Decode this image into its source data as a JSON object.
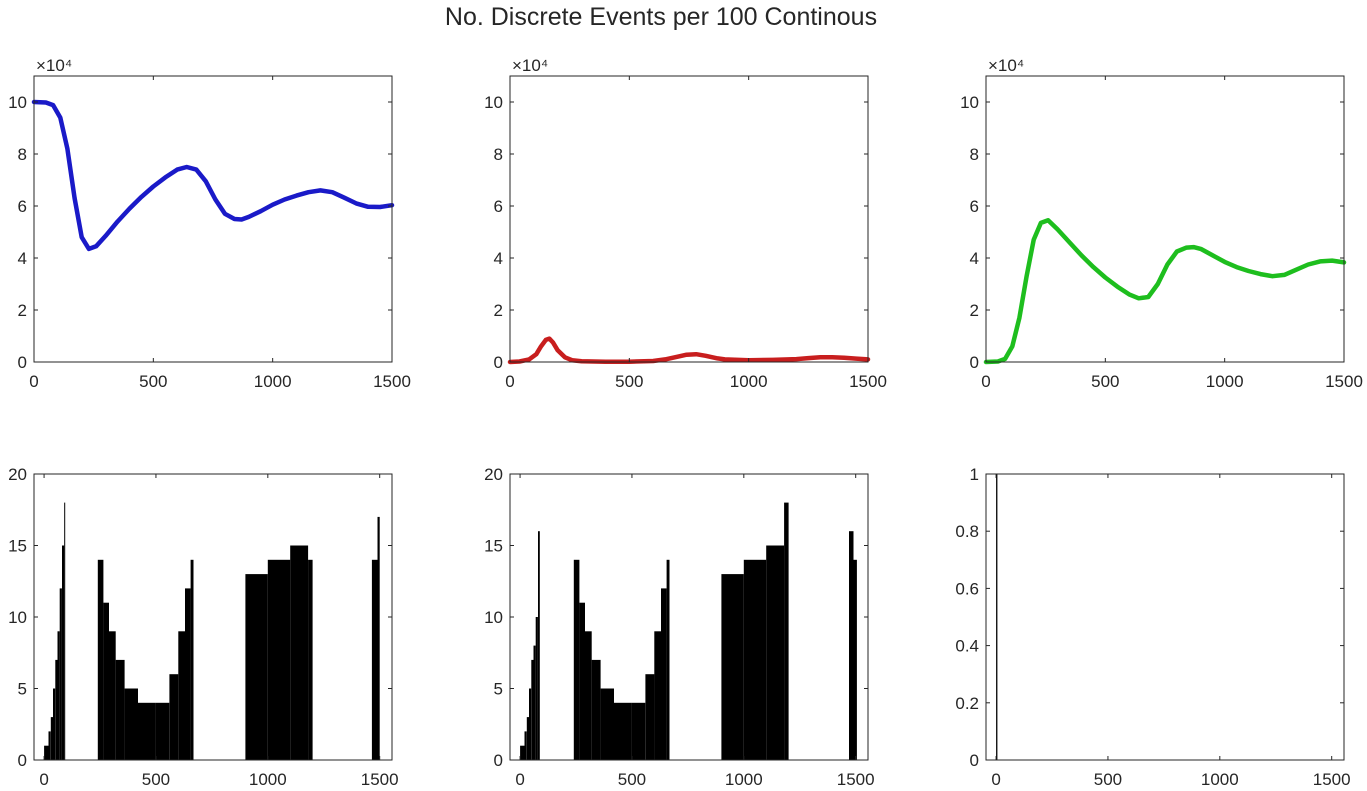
{
  "figure": {
    "title": "No. Discrete Events per 100 Continous"
  },
  "colors": {
    "series_1": "#1a1ac8",
    "series_2": "#c81e1e",
    "series_3": "#1ebe1e",
    "bars": "#000000",
    "axis": "#262626"
  },
  "chart_data": [
    {
      "type": "line",
      "panel": "top-left",
      "xlim": [
        0,
        1500
      ],
      "ylim": [
        0,
        110000
      ],
      "xticks": [
        0,
        500,
        1000,
        1500
      ],
      "yticks": [
        0,
        20000,
        40000,
        60000,
        80000,
        100000
      ],
      "ytick_labels": [
        "0",
        "2",
        "4",
        "6",
        "8",
        "10"
      ],
      "exponent_label": "×10⁴",
      "grid": false,
      "series": [
        {
          "color": "#1a1ac8",
          "x": [
            0,
            50,
            80,
            110,
            140,
            170,
            200,
            230,
            260,
            300,
            350,
            400,
            450,
            500,
            550,
            600,
            640,
            680,
            720,
            760,
            800,
            840,
            870,
            900,
            950,
            1000,
            1050,
            1100,
            1150,
            1200,
            1250,
            1300,
            1350,
            1400,
            1450,
            1500
          ],
          "y": [
            100000,
            99800,
            98800,
            94000,
            82000,
            63000,
            48000,
            43500,
            44500,
            48500,
            54000,
            59000,
            63500,
            67500,
            71000,
            74000,
            75000,
            74000,
            69500,
            62500,
            57000,
            55000,
            54800,
            55800,
            58000,
            60500,
            62500,
            64000,
            65300,
            66000,
            65300,
            63200,
            61000,
            59700,
            59600,
            60300
          ]
        }
      ]
    },
    {
      "type": "line",
      "panel": "top-center",
      "xlim": [
        0,
        1500
      ],
      "ylim": [
        0,
        110000
      ],
      "xticks": [
        0,
        500,
        1000,
        1500
      ],
      "yticks": [
        0,
        20000,
        40000,
        60000,
        80000,
        100000
      ],
      "ytick_labels": [
        "0",
        "2",
        "4",
        "6",
        "8",
        "10"
      ],
      "exponent_label": "×10⁴",
      "grid": false,
      "series": [
        {
          "color": "#c81e1e",
          "x": [
            0,
            40,
            80,
            110,
            130,
            150,
            165,
            180,
            200,
            230,
            260,
            300,
            400,
            500,
            600,
            650,
            700,
            740,
            780,
            820,
            870,
            900,
            1000,
            1100,
            1200,
            1250,
            1300,
            1350,
            1400,
            1450,
            1500
          ],
          "y": [
            0,
            200,
            1000,
            3000,
            6000,
            8500,
            9000,
            7500,
            4500,
            1800,
            700,
            300,
            100,
            100,
            400,
            1000,
            2000,
            2800,
            3000,
            2400,
            1400,
            1000,
            700,
            800,
            1100,
            1500,
            1800,
            1800,
            1600,
            1300,
            1000
          ]
        }
      ]
    },
    {
      "type": "line",
      "panel": "top-right",
      "xlim": [
        0,
        1500
      ],
      "ylim": [
        0,
        110000
      ],
      "xticks": [
        0,
        500,
        1000,
        1500
      ],
      "yticks": [
        0,
        20000,
        40000,
        60000,
        80000,
        100000
      ],
      "ytick_labels": [
        "0",
        "2",
        "4",
        "6",
        "8",
        "10"
      ],
      "exponent_label": "×10⁴",
      "grid": false,
      "series": [
        {
          "color": "#1ebe1e",
          "x": [
            0,
            50,
            80,
            110,
            140,
            170,
            200,
            230,
            260,
            300,
            350,
            400,
            450,
            500,
            550,
            600,
            640,
            680,
            720,
            760,
            800,
            840,
            870,
            900,
            950,
            1000,
            1050,
            1100,
            1150,
            1200,
            1250,
            1300,
            1350,
            1400,
            1450,
            1500
          ],
          "y": [
            0,
            200,
            1200,
            6000,
            17000,
            33000,
            47000,
            53500,
            54500,
            51000,
            46000,
            41000,
            36500,
            32500,
            29000,
            26000,
            24500,
            25000,
            30000,
            37500,
            42500,
            44000,
            44200,
            43500,
            41000,
            38500,
            36500,
            35000,
            33800,
            33000,
            33500,
            35500,
            37500,
            38700,
            39000,
            38300
          ]
        }
      ]
    },
    {
      "type": "bar",
      "panel": "bottom-left",
      "xlim": [
        -45,
        1555
      ],
      "ylim": [
        0,
        20
      ],
      "xticks": [
        0,
        500,
        1000,
        1500
      ],
      "yticks": [
        0,
        5,
        10,
        15,
        20
      ],
      "grid": false,
      "color": "#000000",
      "segments": [
        {
          "x_range": [
            0,
            20
          ],
          "y": 1
        },
        {
          "x_range": [
            20,
            30
          ],
          "y": 2
        },
        {
          "x_range": [
            30,
            40
          ],
          "y": 3
        },
        {
          "x_range": [
            40,
            50
          ],
          "y": 5
        },
        {
          "x_range": [
            50,
            60
          ],
          "y": 7
        },
        {
          "x_range": [
            60,
            70
          ],
          "y": 9
        },
        {
          "x_range": [
            70,
            80
          ],
          "y": 12
        },
        {
          "x_range": [
            80,
            90
          ],
          "y": 15
        },
        {
          "x_range": [
            90,
            94
          ],
          "y": 18
        },
        {
          "x_range": [
            240,
            265
          ],
          "y": 14
        },
        {
          "x_range": [
            265,
            290
          ],
          "y": 11
        },
        {
          "x_range": [
            290,
            320
          ],
          "y": 9
        },
        {
          "x_range": [
            320,
            360
          ],
          "y": 7
        },
        {
          "x_range": [
            360,
            420
          ],
          "y": 5
        },
        {
          "x_range": [
            420,
            500
          ],
          "y": 4
        },
        {
          "x_range": [
            500,
            560
          ],
          "y": 4
        },
        {
          "x_range": [
            560,
            600
          ],
          "y": 6
        },
        {
          "x_range": [
            600,
            630
          ],
          "y": 9
        },
        {
          "x_range": [
            630,
            655
          ],
          "y": 12
        },
        {
          "x_range": [
            655,
            668
          ],
          "y": 14
        },
        {
          "x_range": [
            900,
            1000
          ],
          "y": 13
        },
        {
          "x_range": [
            1000,
            1100
          ],
          "y": 14
        },
        {
          "x_range": [
            1100,
            1180
          ],
          "y": 15
        },
        {
          "x_range": [
            1180,
            1200
          ],
          "y": 14
        },
        {
          "x_range": [
            1465,
            1490
          ],
          "y": 14
        },
        {
          "x_range": [
            1490,
            1500
          ],
          "y": 17
        }
      ]
    },
    {
      "type": "bar",
      "panel": "bottom-center",
      "xlim": [
        -45,
        1555
      ],
      "ylim": [
        0,
        20
      ],
      "xticks": [
        0,
        500,
        1000,
        1500
      ],
      "yticks": [
        0,
        5,
        10,
        15,
        20
      ],
      "grid": false,
      "color": "#000000",
      "segments": [
        {
          "x_range": [
            0,
            20
          ],
          "y": 1
        },
        {
          "x_range": [
            20,
            30
          ],
          "y": 2
        },
        {
          "x_range": [
            30,
            40
          ],
          "y": 3
        },
        {
          "x_range": [
            40,
            50
          ],
          "y": 5
        },
        {
          "x_range": [
            50,
            60
          ],
          "y": 7
        },
        {
          "x_range": [
            60,
            70
          ],
          "y": 8
        },
        {
          "x_range": [
            70,
            80
          ],
          "y": 10
        },
        {
          "x_range": [
            80,
            88
          ],
          "y": 16
        },
        {
          "x_range": [
            240,
            265
          ],
          "y": 14
        },
        {
          "x_range": [
            265,
            290
          ],
          "y": 11
        },
        {
          "x_range": [
            290,
            320
          ],
          "y": 9
        },
        {
          "x_range": [
            320,
            360
          ],
          "y": 7
        },
        {
          "x_range": [
            360,
            420
          ],
          "y": 5
        },
        {
          "x_range": [
            420,
            500
          ],
          "y": 4
        },
        {
          "x_range": [
            500,
            560
          ],
          "y": 4
        },
        {
          "x_range": [
            560,
            600
          ],
          "y": 6
        },
        {
          "x_range": [
            600,
            630
          ],
          "y": 9
        },
        {
          "x_range": [
            630,
            655
          ],
          "y": 12
        },
        {
          "x_range": [
            655,
            668
          ],
          "y": 14
        },
        {
          "x_range": [
            900,
            1000
          ],
          "y": 13
        },
        {
          "x_range": [
            1000,
            1100
          ],
          "y": 14
        },
        {
          "x_range": [
            1100,
            1180
          ],
          "y": 15
        },
        {
          "x_range": [
            1180,
            1200
          ],
          "y": 18
        },
        {
          "x_range": [
            1470,
            1490
          ],
          "y": 16
        },
        {
          "x_range": [
            1490,
            1505
          ],
          "y": 14
        }
      ]
    },
    {
      "type": "bar",
      "panel": "bottom-right",
      "xlim": [
        -45,
        1555
      ],
      "ylim": [
        0,
        1
      ],
      "xticks": [
        0,
        500,
        1000,
        1500
      ],
      "yticks": [
        0,
        0.2,
        0.4,
        0.6,
        0.8,
        1
      ],
      "grid": false,
      "color": "#000000",
      "segments": [
        {
          "x_range": [
            0,
            6
          ],
          "y": 1
        }
      ]
    }
  ]
}
